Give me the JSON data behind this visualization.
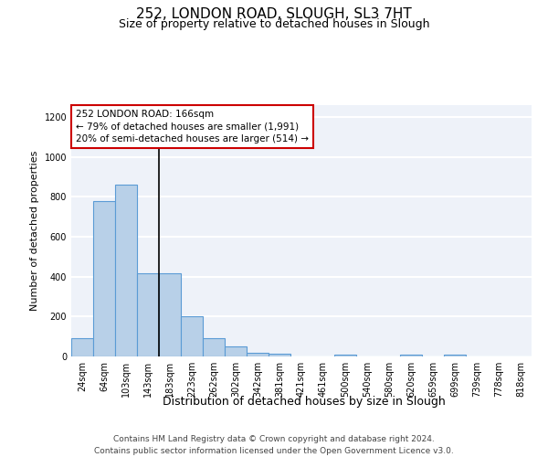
{
  "title_line1": "252, LONDON ROAD, SLOUGH, SL3 7HT",
  "title_line2": "Size of property relative to detached houses in Slough",
  "xlabel": "Distribution of detached houses by size in Slough",
  "ylabel": "Number of detached properties",
  "categories": [
    "24sqm",
    "64sqm",
    "103sqm",
    "143sqm",
    "183sqm",
    "223sqm",
    "262sqm",
    "302sqm",
    "342sqm",
    "381sqm",
    "421sqm",
    "461sqm",
    "500sqm",
    "540sqm",
    "580sqm",
    "620sqm",
    "659sqm",
    "699sqm",
    "739sqm",
    "778sqm",
    "818sqm"
  ],
  "values": [
    90,
    780,
    860,
    415,
    415,
    200,
    90,
    50,
    20,
    15,
    0,
    0,
    10,
    0,
    0,
    10,
    0,
    10,
    0,
    0,
    0
  ],
  "bar_color": "#b8d0e8",
  "bar_edgecolor": "#5b9bd5",
  "annotation_text": "252 LONDON ROAD: 166sqm\n← 79% of detached houses are smaller (1,991)\n20% of semi-detached houses are larger (514) →",
  "annotation_box_facecolor": "#ffffff",
  "annotation_box_edgecolor": "#cc0000",
  "vline_x": 3.5,
  "vline_color": "#000000",
  "ylim": [
    0,
    1260
  ],
  "yticks": [
    0,
    200,
    400,
    600,
    800,
    1000,
    1200
  ],
  "footer_line1": "Contains HM Land Registry data © Crown copyright and database right 2024.",
  "footer_line2": "Contains public sector information licensed under the Open Government Licence v3.0.",
  "bg_color": "#eef2f9",
  "grid_color": "#ffffff",
  "title_fontsize": 11,
  "subtitle_fontsize": 9,
  "axis_label_fontsize": 8,
  "tick_fontsize": 7,
  "annotation_fontsize": 7.5,
  "footer_fontsize": 6.5
}
